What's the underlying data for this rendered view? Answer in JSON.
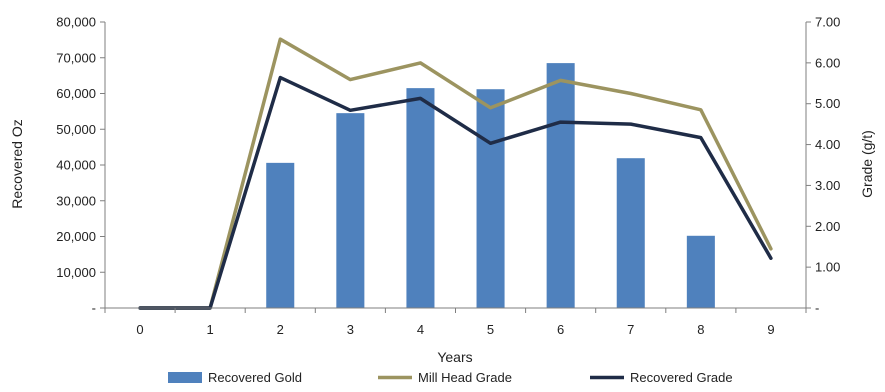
{
  "chart_data": {
    "type": "bar",
    "categories": [
      "0",
      "1",
      "2",
      "3",
      "4",
      "5",
      "6",
      "7",
      "8",
      "9"
    ],
    "xlabel": "Years",
    "ylabel": "Recovered Oz",
    "y2label": "Grade (g/t)",
    "ylim": [
      0,
      80000
    ],
    "y2lim": [
      0,
      7
    ],
    "y_ticks": [
      "-",
      "10,000",
      "20,000",
      "30,000",
      "40,000",
      "50,000",
      "60,000",
      "70,000",
      "80,000"
    ],
    "y2_ticks": [
      "-",
      "1.00",
      "2.00",
      "3.00",
      "4.00",
      "5.00",
      "6.00",
      "7.00"
    ],
    "grid": false,
    "legend_position": "bottom",
    "series": [
      {
        "name": "Recovered Gold",
        "type": "bar",
        "axis": "left",
        "color": "#4F81BD",
        "values": [
          0,
          0,
          40600,
          54500,
          61500,
          61200,
          68500,
          41900,
          20200,
          0
        ]
      },
      {
        "name": "Mill Head Grade",
        "type": "line",
        "axis": "right",
        "color": "#9C9460",
        "values": [
          0,
          0,
          6.58,
          5.59,
          6.0,
          4.9,
          5.57,
          5.25,
          4.85,
          1.45
        ]
      },
      {
        "name": "Recovered Grade",
        "type": "line",
        "axis": "right",
        "color": "#1F2C47",
        "values": [
          0,
          0,
          5.64,
          4.84,
          5.13,
          4.03,
          4.55,
          4.5,
          4.17,
          1.22
        ]
      }
    ]
  }
}
